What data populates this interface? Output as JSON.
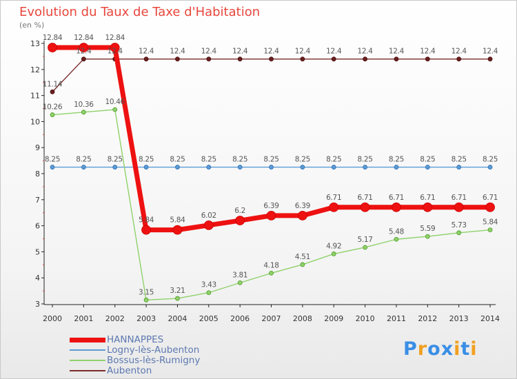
{
  "chart_data": {
    "type": "line",
    "title": "Evolution du Taux de Taxe d'Habitation",
    "ylabel": "(en %)",
    "xlabel": "",
    "x": [
      "2000",
      "2001",
      "2002",
      "2003",
      "2004",
      "2005",
      "2006",
      "2007",
      "2008",
      "2009",
      "2010",
      "2011",
      "2012",
      "2013",
      "2014"
    ],
    "ylim": [
      3,
      13
    ],
    "yticks": [
      3,
      4,
      5,
      6,
      7,
      8,
      9,
      10,
      11,
      12,
      13
    ],
    "grid": false,
    "legend_position": "bottom-left",
    "series": [
      {
        "name": "HANNAPPES",
        "color": "#ee1111",
        "values": [
          12.84,
          12.84,
          12.84,
          5.84,
          5.84,
          6.02,
          6.2,
          6.39,
          6.39,
          6.71,
          6.71,
          6.71,
          6.71,
          6.71,
          6.71
        ]
      },
      {
        "name": "Logny-lès-Aubenton",
        "color": "#5b9bd5",
        "values": [
          8.25,
          8.25,
          8.25,
          8.25,
          8.25,
          8.25,
          8.25,
          8.25,
          8.25,
          8.25,
          8.25,
          8.25,
          8.25,
          8.25,
          8.25
        ]
      },
      {
        "name": "Bossus-lès-Rumigny",
        "color": "#8fd16a",
        "values": [
          10.26,
          10.36,
          10.46,
          3.15,
          3.21,
          3.43,
          3.81,
          4.18,
          4.51,
          4.92,
          5.17,
          5.48,
          5.59,
          5.73,
          5.84
        ]
      },
      {
        "name": "Aubenton",
        "color": "#7a2b2b",
        "values": [
          11.14,
          12.4,
          12.4,
          12.4,
          12.4,
          12.4,
          12.4,
          12.4,
          12.4,
          12.4,
          12.4,
          12.4,
          12.4,
          12.4,
          12.4
        ]
      }
    ]
  },
  "logo": {
    "letters": [
      "P",
      "r",
      "o",
      "x",
      "i",
      "t",
      "i"
    ],
    "colors": [
      "#3a8ee6",
      "#f0a020",
      "#3a8ee6",
      "#3a8ee6",
      "#f0a020",
      "#3a8ee6",
      "#f0a020"
    ]
  }
}
